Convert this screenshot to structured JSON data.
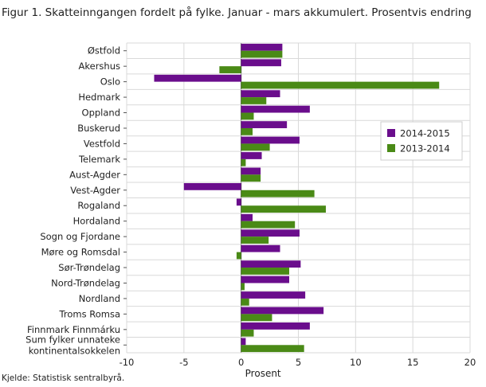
{
  "figure": {
    "title": "Figur 1. Skatteinngangen fordelt på fylke. Januar - mars akkumulert. Prosentvis endring",
    "source": "Kjelde: Statistisk sentralbyrå."
  },
  "chart_data": {
    "type": "bar",
    "orientation": "horizontal",
    "categories": [
      "Østfold",
      "Akershus",
      "Oslo",
      "Hedmark",
      "Oppland",
      "Buskerud",
      "Vestfold",
      "Telemark",
      "Aust-Agder",
      "Vest-Agder",
      "Rogaland",
      "Hordaland",
      "Sogn og Fjordane",
      "Møre og Romsdal",
      "Sør-Trøndelag",
      "Nord-Trøndelag",
      "Nordland",
      "Troms Romsa",
      "Finnmark Finnmárku",
      "Sum fylker unnateke kontinentalsokkelen"
    ],
    "series": [
      {
        "name": "2014-2015",
        "color": "#6a0d8c",
        "values": [
          3.6,
          3.5,
          -7.6,
          3.4,
          6.0,
          4.0,
          5.1,
          1.8,
          1.7,
          -5.0,
          -0.4,
          1.0,
          5.1,
          3.4,
          5.2,
          4.2,
          5.6,
          7.2,
          6.0,
          0.4
        ]
      },
      {
        "name": "2013-2014",
        "color": "#4a8a16",
        "values": [
          3.6,
          -1.9,
          17.3,
          2.2,
          1.1,
          1.0,
          2.5,
          0.4,
          1.7,
          6.4,
          7.4,
          4.7,
          2.4,
          -0.4,
          4.2,
          0.3,
          0.7,
          2.7,
          1.1,
          5.5
        ]
      }
    ],
    "xlabel": "Prosent",
    "xlim": [
      -10,
      20
    ],
    "xticks": [
      -10,
      -5,
      0,
      5,
      10,
      15,
      20
    ],
    "grid": true,
    "legend_position": "right"
  }
}
